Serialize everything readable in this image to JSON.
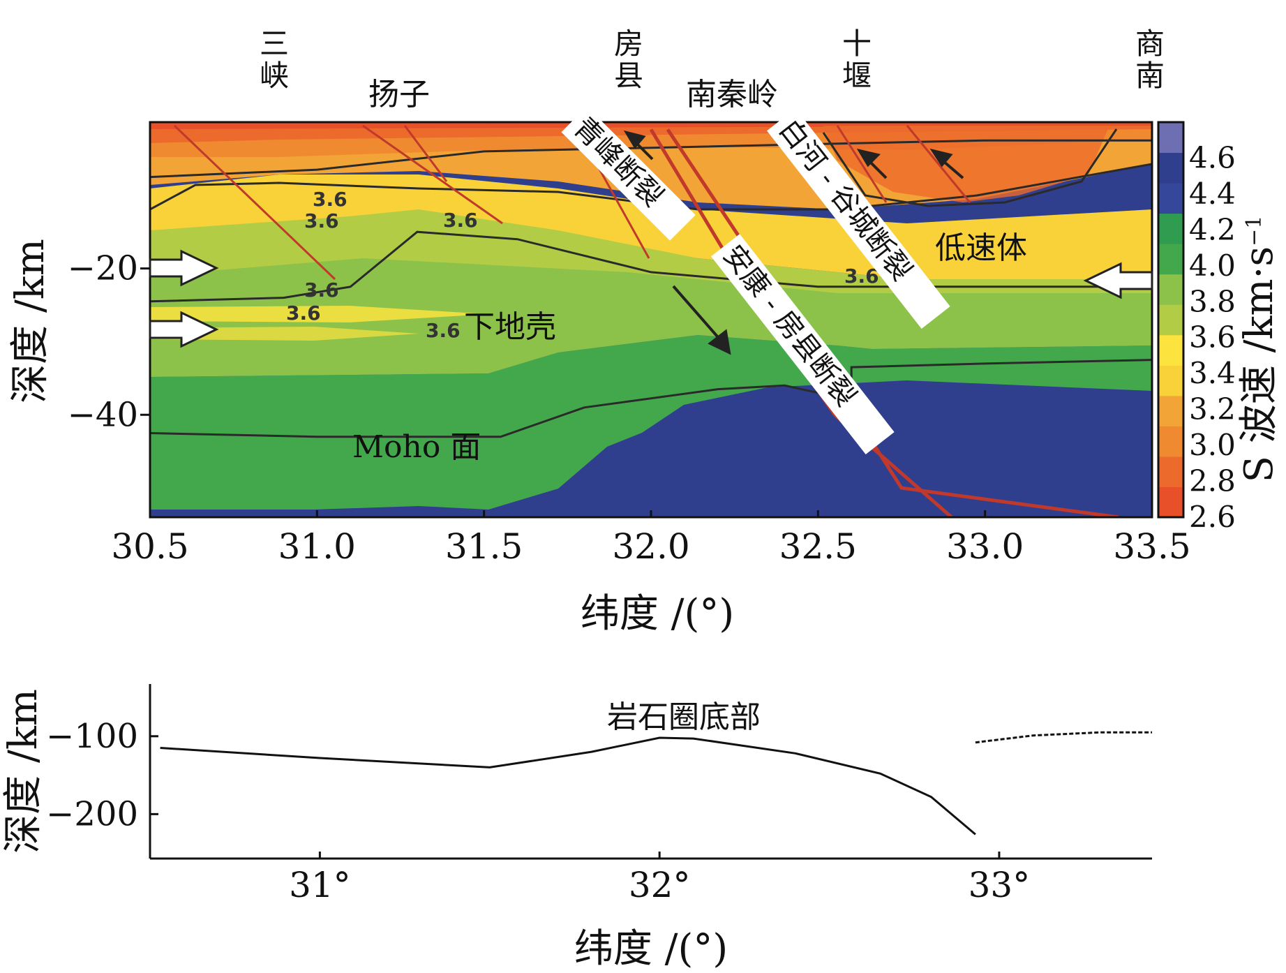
{
  "places": {
    "p1": "三峡",
    "p2": "房县",
    "p3": "十堰",
    "p4": "商南"
  },
  "regions": {
    "r1": "扬子",
    "r2": "南秦岭"
  },
  "annotations": {
    "fault1": "青峰断裂",
    "fault2": "白河 - 谷城断裂",
    "fault3": "安康 - 房县断裂",
    "low_velocity": "低速体",
    "lower_crust": "下地壳",
    "moho": "Moho 面",
    "lithosphere_base": "岩石圈底部"
  },
  "chart_data": [
    {
      "type": "heatmap",
      "xlabel": "纬度 /(°)",
      "ylabel": "深度 /km",
      "xlim": [
        30.5,
        33.5
      ],
      "ylim": [
        -54,
        0
      ],
      "x_ticks": [
        "30.5",
        "31.0",
        "31.5",
        "32.0",
        "32.5",
        "33.0",
        "33.5"
      ],
      "x_tick_values": [
        30.5,
        31.0,
        31.5,
        32.0,
        32.5,
        33.0,
        33.5
      ],
      "y_ticks": [
        "−20",
        "−40"
      ],
      "y_tick_values": [
        -20,
        -40
      ],
      "colorbar": {
        "label": "S 波速 /km·s",
        "label_sup": "−1",
        "ticks": [
          "2.6",
          "2.8",
          "3.0",
          "3.2",
          "3.4",
          "3.6",
          "3.8",
          "4.0",
          "4.2",
          "4.4",
          "4.6"
        ],
        "range": [
          2.6,
          4.8
        ],
        "colors": [
          "#e8502a",
          "#ec6a2c",
          "#f08a30",
          "#f3a436",
          "#f9d23a",
          "#fce33e",
          "#b3cc46",
          "#8dc24a",
          "#43a84c",
          "#2f9c50",
          "#34479a",
          "#2f3f8e",
          "#6e6fb3"
        ]
      },
      "contour_labels": [
        "3.6",
        "3.6",
        "3.6",
        "3.6",
        "3.6",
        "3.6",
        "3.6"
      ],
      "layers": {
        "upper_boundary": [
          [
            30.5,
            -7.5
          ],
          [
            31.0,
            -6.5
          ],
          [
            31.5,
            -4
          ],
          [
            32.0,
            -3.5
          ],
          [
            32.5,
            -3
          ],
          [
            33.0,
            -2.5
          ],
          [
            33.5,
            -2.5
          ]
        ],
        "low_velocity_base": [
          [
            30.5,
            -24.5
          ],
          [
            30.9,
            -24
          ],
          [
            31.1,
            -22.5
          ],
          [
            31.3,
            -15
          ],
          [
            31.6,
            -16
          ],
          [
            32.0,
            -20.5
          ],
          [
            32.5,
            -22.5
          ],
          [
            33.0,
            -22.5
          ],
          [
            33.5,
            -22.5
          ]
        ],
        "moho": [
          [
            30.5,
            -42.5
          ],
          [
            31.0,
            -43
          ],
          [
            31.55,
            -43
          ],
          [
            31.8,
            -39
          ],
          [
            32.2,
            -36.5
          ],
          [
            32.4,
            -36
          ],
          [
            32.6,
            -38
          ],
          [
            32.6,
            -33.5
          ],
          [
            33.0,
            -33
          ],
          [
            33.5,
            -32.5
          ]
        ]
      },
      "faults": {
        "qingfeng": [
          [
            32.05,
            -1
          ],
          [
            32.4,
            -25
          ],
          [
            32.75,
            -50
          ],
          [
            33.4,
            -54
          ]
        ],
        "ankang_fangxian": [
          [
            32.0,
            -1
          ],
          [
            32.25,
            -20
          ],
          [
            32.55,
            -40
          ],
          [
            32.9,
            -54
          ]
        ]
      }
    },
    {
      "type": "line",
      "xlabel": "纬度 /(°)",
      "ylabel": "深度 /km",
      "xlim": [
        30.5,
        33.45
      ],
      "ylim": [
        -257,
        -33
      ],
      "x_ticks": [
        "31°",
        "32°",
        "33°"
      ],
      "x_tick_values": [
        31,
        32,
        33
      ],
      "y_ticks": [
        "−100",
        "−200"
      ],
      "y_tick_values": [
        -100,
        -200
      ],
      "series": [
        {
          "name": "岩石圈底部",
          "style": "solid",
          "x": [
            30.53,
            31.0,
            31.5,
            31.8,
            32.0,
            32.1,
            32.4,
            32.65,
            32.8,
            32.93
          ],
          "y": [
            -115,
            -128,
            -140,
            -120,
            -102,
            -103,
            -122,
            -148,
            -178,
            -226
          ]
        },
        {
          "name": "",
          "style": "dashed",
          "x": [
            32.93,
            33.1,
            33.3,
            33.45
          ],
          "y": [
            -108,
            -99,
            -95,
            -95
          ]
        }
      ]
    }
  ]
}
